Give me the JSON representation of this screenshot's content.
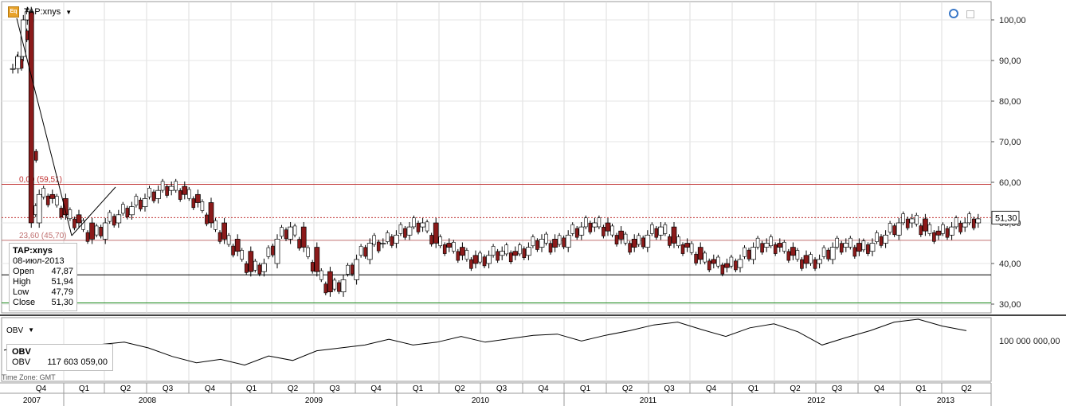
{
  "header": {
    "icon": "eq-icon",
    "symbol_label": "TAP:xnys",
    "dropdown": "▼"
  },
  "price_box": "51,30",
  "info_box": {
    "title": "TAP:xnys",
    "date": "08-июл-2013",
    "rows": [
      {
        "label": "Open",
        "value": "47,87"
      },
      {
        "label": "High",
        "value": "51,94"
      },
      {
        "label": "Low",
        "value": "47,79"
      },
      {
        "label": "Close",
        "value": "51,30"
      }
    ]
  },
  "obv_header": {
    "label": "OBV",
    "dropdown": "▼"
  },
  "obv_box": {
    "title": "OBV",
    "label": "OBV",
    "value": "117 603 059,00"
  },
  "time_zone": "Time Zone: GMT",
  "chart_data": {
    "type": "candlestick",
    "y_ticks": [
      "100,00",
      "90,00",
      "80,00",
      "70,00",
      "60,00",
      "50,00",
      "40,00",
      "30,00"
    ],
    "obv_tick": "100 000 000,00",
    "levels": [
      {
        "label": "0,00 (59,51)",
        "value": 59.51,
        "color": "#c03030"
      },
      {
        "label": "23,60 (45,70)",
        "value": 45.7,
        "color": "#c07070"
      },
      {
        "label": "",
        "value": 37.2,
        "color": "#000000"
      },
      {
        "label": "",
        "value": 30.3,
        "color": "#1a8a1a"
      }
    ],
    "current_price": 51.3,
    "quarters": [
      "Q4",
      "Q1",
      "Q2",
      "Q3",
      "Q4",
      "Q1",
      "Q2",
      "Q3",
      "Q4",
      "Q1",
      "Q2",
      "Q3",
      "Q4",
      "Q1",
      "Q2",
      "Q3",
      "Q4",
      "Q1",
      "Q2",
      "Q3",
      "Q4",
      "Q1",
      "Q2"
    ],
    "years": [
      "2007",
      "2008",
      "2009",
      "2010",
      "2011",
      "2012",
      "2013"
    ],
    "price_path": [
      [
        0,
        88
      ],
      [
        0.4,
        91
      ],
      [
        0.8,
        100
      ],
      [
        1.1,
        102
      ],
      [
        1.4,
        50
      ],
      [
        2,
        57
      ],
      [
        3,
        56
      ],
      [
        4,
        52
      ],
      [
        5,
        50
      ],
      [
        6,
        46
      ],
      [
        7,
        50
      ],
      [
        8,
        52
      ],
      [
        9,
        54
      ],
      [
        10,
        56
      ],
      [
        11,
        58
      ],
      [
        12,
        59
      ],
      [
        13,
        57
      ],
      [
        14,
        55
      ],
      [
        15,
        50
      ],
      [
        16,
        46
      ],
      [
        17,
        43
      ],
      [
        18,
        38
      ],
      [
        19,
        40
      ],
      [
        20,
        46
      ],
      [
        21,
        49
      ],
      [
        22,
        44
      ],
      [
        23,
        38
      ],
      [
        24,
        33
      ],
      [
        25,
        36
      ],
      [
        26,
        41
      ],
      [
        27,
        45
      ],
      [
        28,
        45
      ],
      [
        29,
        47
      ],
      [
        30,
        49
      ],
      [
        31,
        50
      ],
      [
        32,
        45
      ],
      [
        33,
        44
      ],
      [
        34,
        42
      ],
      [
        35,
        40
      ],
      [
        36,
        42
      ],
      [
        37,
        43
      ],
      [
        38,
        42
      ],
      [
        39,
        44
      ],
      [
        40,
        46
      ],
      [
        41,
        44
      ],
      [
        42,
        47
      ],
      [
        43,
        49
      ],
      [
        44,
        50
      ],
      [
        45,
        48
      ],
      [
        46,
        46
      ],
      [
        47,
        44
      ],
      [
        48,
        47
      ],
      [
        49,
        49
      ],
      [
        50,
        45
      ],
      [
        51,
        44
      ],
      [
        52,
        41
      ],
      [
        53,
        40
      ],
      [
        54,
        39
      ],
      [
        55,
        41
      ],
      [
        56,
        44
      ],
      [
        57,
        45
      ],
      [
        58,
        44
      ],
      [
        59,
        42
      ],
      [
        60,
        40
      ],
      [
        61,
        41
      ],
      [
        62,
        44
      ],
      [
        63,
        45
      ],
      [
        64,
        43
      ],
      [
        65,
        45
      ],
      [
        66,
        47
      ],
      [
        67,
        50
      ],
      [
        68,
        51
      ],
      [
        69,
        48
      ],
      [
        70,
        47
      ],
      [
        71,
        49
      ],
      [
        72,
        50
      ],
      [
        73,
        51
      ]
    ],
    "obv_path": [
      [
        0,
        0.46
      ],
      [
        2,
        0.55
      ],
      [
        4,
        0.48
      ],
      [
        6,
        0.52
      ],
      [
        8,
        0.56
      ],
      [
        10,
        0.6
      ],
      [
        12,
        0.5
      ],
      [
        14,
        0.35
      ],
      [
        16,
        0.24
      ],
      [
        18,
        0.3
      ],
      [
        20,
        0.2
      ],
      [
        22,
        0.36
      ],
      [
        24,
        0.28
      ],
      [
        26,
        0.45
      ],
      [
        28,
        0.5
      ],
      [
        30,
        0.55
      ],
      [
        32,
        0.65
      ],
      [
        34,
        0.55
      ],
      [
        36,
        0.6
      ],
      [
        38,
        0.7
      ],
      [
        40,
        0.6
      ],
      [
        42,
        0.66
      ],
      [
        44,
        0.72
      ],
      [
        46,
        0.74
      ],
      [
        48,
        0.62
      ],
      [
        50,
        0.72
      ],
      [
        52,
        0.8
      ],
      [
        54,
        0.9
      ],
      [
        56,
        0.95
      ],
      [
        58,
        0.82
      ],
      [
        60,
        0.7
      ],
      [
        62,
        0.85
      ],
      [
        64,
        0.92
      ],
      [
        66,
        0.78
      ],
      [
        68,
        0.55
      ],
      [
        70,
        0.68
      ],
      [
        72,
        0.8
      ],
      [
        74,
        0.95
      ],
      [
        76,
        1.0
      ],
      [
        78,
        0.88
      ],
      [
        80,
        0.8
      ]
    ]
  }
}
